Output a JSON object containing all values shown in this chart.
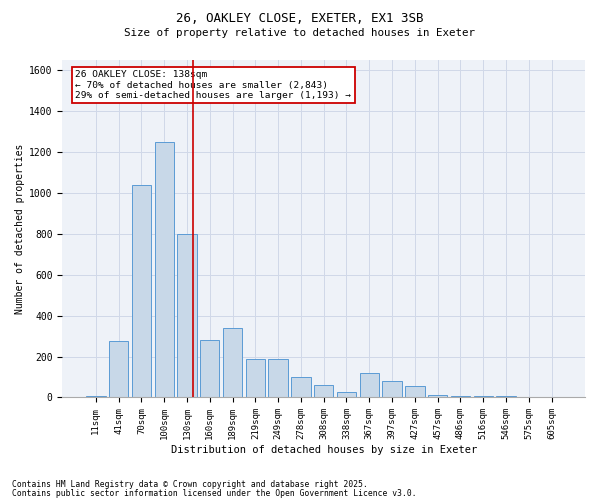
{
  "title1": "26, OAKLEY CLOSE, EXETER, EX1 3SB",
  "title2": "Size of property relative to detached houses in Exeter",
  "xlabel": "Distribution of detached houses by size in Exeter",
  "ylabel": "Number of detached properties",
  "categories": [
    "11sqm",
    "41sqm",
    "70sqm",
    "100sqm",
    "130sqm",
    "160sqm",
    "189sqm",
    "219sqm",
    "249sqm",
    "278sqm",
    "308sqm",
    "338sqm",
    "367sqm",
    "397sqm",
    "427sqm",
    "457sqm",
    "486sqm",
    "516sqm",
    "546sqm",
    "575sqm",
    "605sqm"
  ],
  "values": [
    5,
    275,
    1040,
    1250,
    800,
    280,
    340,
    190,
    190,
    100,
    60,
    25,
    120,
    80,
    55,
    10,
    5,
    5,
    5,
    2,
    2
  ],
  "bar_color": "#c8d8e8",
  "bar_edge_color": "#5b9bd5",
  "grid_color": "#d0d8e8",
  "background_color": "#eef2f8",
  "annotation_box_color": "#cc0000",
  "vline_color": "#cc0000",
  "annotation_text": "26 OAKLEY CLOSE: 138sqm\n← 70% of detached houses are smaller (2,843)\n29% of semi-detached houses are larger (1,193) →",
  "footnote1": "Contains HM Land Registry data © Crown copyright and database right 2025.",
  "footnote2": "Contains public sector information licensed under the Open Government Licence v3.0.",
  "ylim": [
    0,
    1650
  ],
  "yticks": [
    0,
    200,
    400,
    600,
    800,
    1000,
    1200,
    1400,
    1600
  ]
}
